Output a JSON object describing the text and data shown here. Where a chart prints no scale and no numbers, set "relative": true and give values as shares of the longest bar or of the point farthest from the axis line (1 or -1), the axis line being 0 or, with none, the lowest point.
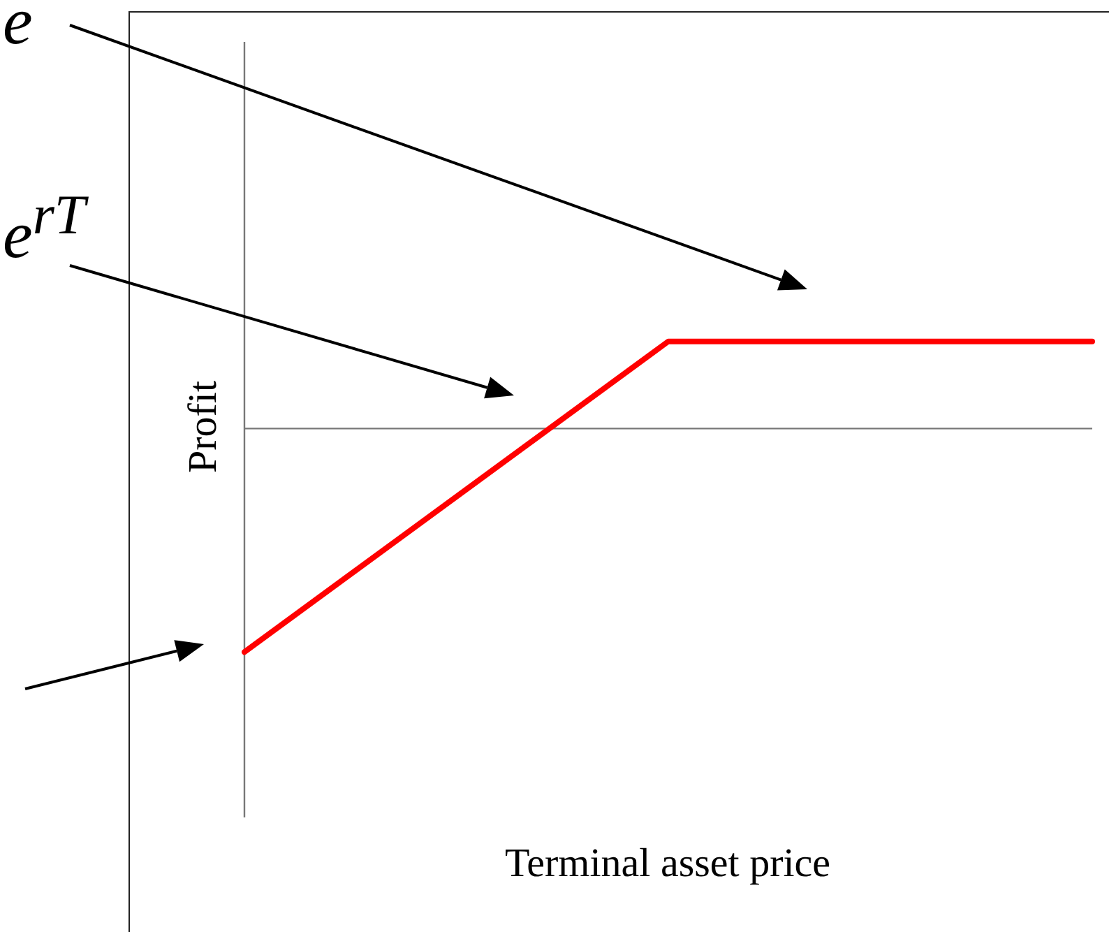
{
  "chart_data": {
    "type": "line",
    "relative": true,
    "categories": [
      null,
      null,
      null
    ],
    "series": [
      {
        "color": "#ff0000",
        "values": [
          -1,
          0.39,
          0.39
        ]
      }
    ],
    "xlabel": "Terminal asset price",
    "ylabel": "Profit",
    "annotations": [
      "e",
      "e$^{rT}$"
    ],
    "legend": false,
    "marker": "none",
    "line_style": "solid"
  }
}
